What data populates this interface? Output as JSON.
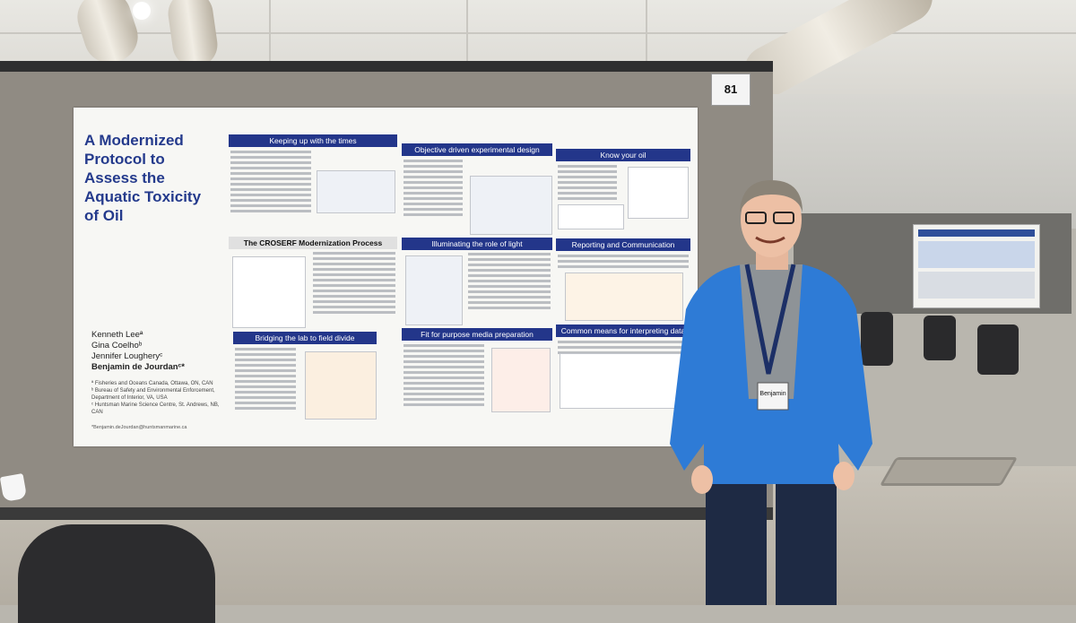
{
  "poster": {
    "title": "A Modernized Protocol to Assess the Aquatic Toxicity of Oil",
    "authors": [
      "Kenneth Leeª",
      "Gina Coelhoᵇ",
      "Jennifer Lougheryᶜ",
      "Benjamin de Jourdanᶜ*"
    ],
    "affiliations": [
      "ª Fisheries and Oceans Canada, Ottawa, ON, CAN",
      "ᵇ Bureau of Safety and Environmental Enforcement, Department of Interior, VA, USA",
      "ᶜ Huntsman Marine Science Centre, St. Andrews, NB, CAN"
    ],
    "email": "*Benjamin.deJourdan@huntsmanmarine.ca",
    "sections": {
      "keeping_up": "Keeping up with the times",
      "objective": "Objective driven experimental design",
      "know_oil": "Know your oil",
      "croserf": "The CROSERF Modernization Process",
      "role_light": "Illuminating the role of light",
      "reporting": "Reporting and Communication",
      "bridging": "Bridging the lab to field divide",
      "fit_media": "Fit for purpose media preparation",
      "common_means": "Common means for interpreting data"
    }
  },
  "booth_number": "81",
  "badge_name": "Benjamin"
}
